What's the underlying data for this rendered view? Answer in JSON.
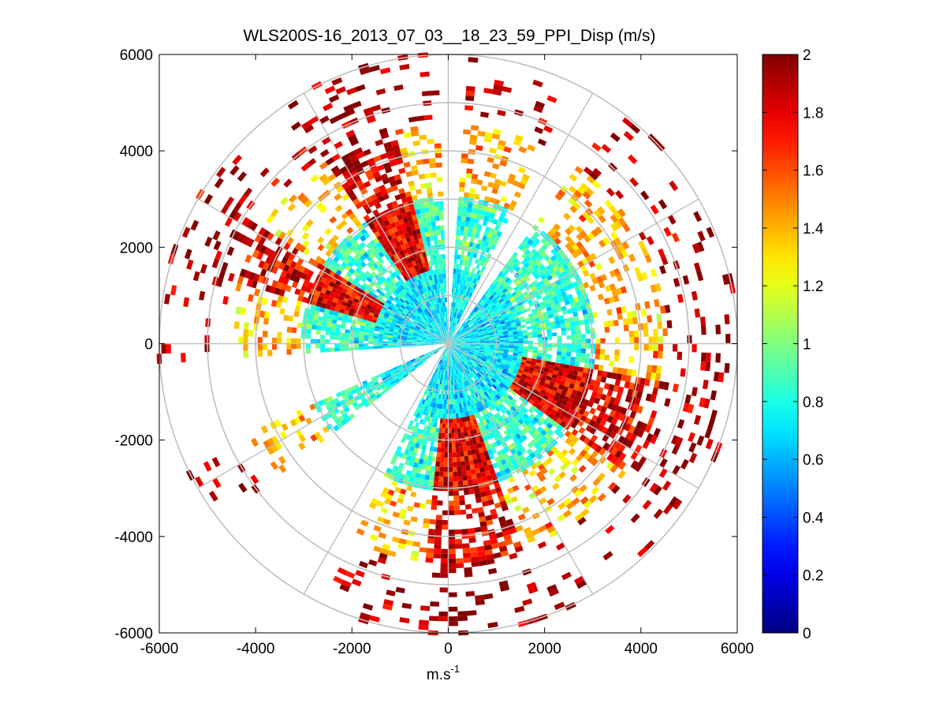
{
  "chart_data": {
    "type": "heatmap",
    "subtype": "polar-ppi",
    "title": "WLS200S-16_2013_07_03__18_23_59_PPI_Disp (m/s)",
    "xlabel": "m.s",
    "xlabel_sup": "-1",
    "ylabel": "",
    "xlim": [
      -6000,
      6000
    ],
    "ylim": [
      -6000,
      6000
    ],
    "xticks": [
      -6000,
      -4000,
      -2000,
      0,
      2000,
      4000,
      6000
    ],
    "yticks": [
      -6000,
      -4000,
      -2000,
      0,
      2000,
      4000,
      6000
    ],
    "xtick_labels": [
      "-6000",
      "-4000",
      "-2000",
      "0",
      "2000",
      "4000",
      "6000"
    ],
    "ytick_labels": [
      "-6000",
      "-4000",
      "-2000",
      "0",
      "2000",
      "4000",
      "6000"
    ],
    "range_rings": [
      1000,
      2000,
      3000,
      4000,
      5000,
      6000
    ],
    "spoke_angles_deg": [
      0,
      30,
      60,
      90,
      120,
      150,
      180,
      210,
      240,
      270,
      300,
      330
    ],
    "max_range": 6000,
    "colorbar": {
      "colormap": "jet",
      "clim": [
        0,
        2
      ],
      "ticks": [
        0,
        0.2,
        0.4,
        0.6,
        0.8,
        1,
        1.2,
        1.4,
        1.6,
        1.8,
        2
      ],
      "tick_labels": [
        "0",
        "0.2",
        "0.4",
        "0.6",
        "0.8",
        "1",
        "1.2",
        "1.4",
        "1.6",
        "1.8",
        "2"
      ]
    },
    "value_bands": [
      {
        "range_m": [
          0,
          1500
        ],
        "typical_value": 0.72,
        "coverage": 0.98
      },
      {
        "range_m": [
          1500,
          3000
        ],
        "typical_value": 0.85,
        "coverage": 0.8
      },
      {
        "range_m": [
          3000,
          4500
        ],
        "typical_value": 1.4,
        "coverage": 0.35
      },
      {
        "range_m": [
          4500,
          6000
        ],
        "typical_value": 1.9,
        "coverage": 0.12
      }
    ],
    "high_value_sectors_deg": [
      [
        -35,
        -20
      ],
      [
        100,
        125
      ],
      [
        160,
        185
      ],
      [
        285,
        300
      ],
      [
        330,
        345
      ]
    ],
    "empty_sectors_deg": [
      [
        -2,
        2
      ],
      [
        25,
        35
      ],
      [
        205,
        230
      ],
      [
        245,
        265
      ]
    ]
  }
}
